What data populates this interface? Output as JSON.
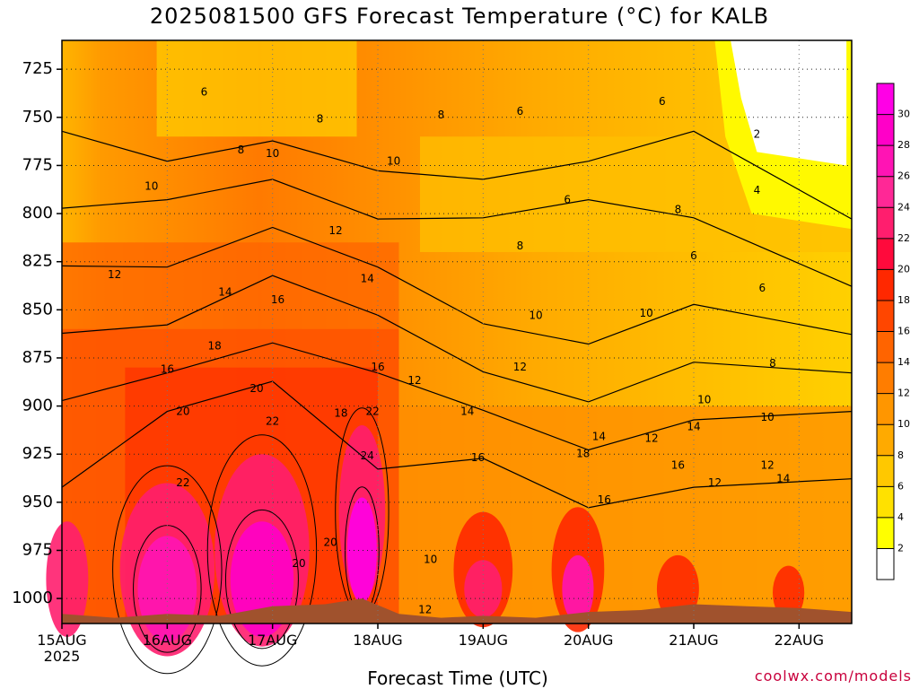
{
  "title": "2025081500 GFS Forecast Temperature (°C) for KALB",
  "credit": "coolwx.com/models",
  "chart_data": {
    "type": "heatmap",
    "title": "2025081500 GFS Forecast Temperature (°C) for KALB",
    "xlabel": "Forecast Time (UTC)",
    "ylabel": "",
    "x_ticks": [
      "15AUG",
      "16AUG",
      "17AUG",
      "18AUG",
      "19AUG",
      "20AUG",
      "21AUG",
      "22AUG"
    ],
    "x_tick_year": "2025",
    "xlim_days": [
      0,
      7.5
    ],
    "y_ticks": [
      725,
      750,
      775,
      800,
      825,
      850,
      875,
      900,
      925,
      950,
      975,
      1000
    ],
    "ylim_hpa": [
      1013,
      710
    ],
    "grid": true,
    "colorbar": {
      "ticks": [
        2,
        4,
        6,
        8,
        10,
        12,
        14,
        16,
        18,
        20,
        22,
        24,
        26,
        28,
        30
      ],
      "colors": [
        "#ffffff",
        "#ffff00",
        "#ffe100",
        "#ffc800",
        "#ffaa00",
        "#ff9600",
        "#ff7d00",
        "#ff6400",
        "#ff4600",
        "#ff2800",
        "#ff0a3c",
        "#ff1e6e",
        "#ff2896",
        "#ff14b4",
        "#ff00c8",
        "#ff00e6"
      ]
    },
    "contour_labels": [
      {
        "value": 6,
        "day": 1.35,
        "p": 737
      },
      {
        "value": 8,
        "day": 1.7,
        "p": 767
      },
      {
        "value": 10,
        "day": 0.85,
        "p": 786
      },
      {
        "value": 10,
        "day": 2.0,
        "p": 769
      },
      {
        "value": 8,
        "day": 2.45,
        "p": 751
      },
      {
        "value": 8,
        "day": 3.6,
        "p": 749
      },
      {
        "value": 10,
        "day": 3.15,
        "p": 773
      },
      {
        "value": 12,
        "day": 2.6,
        "p": 809
      },
      {
        "value": 12,
        "day": 0.5,
        "p": 832
      },
      {
        "value": 14,
        "day": 1.55,
        "p": 841
      },
      {
        "value": 16,
        "day": 2.05,
        "p": 845
      },
      {
        "value": 14,
        "day": 2.9,
        "p": 834
      },
      {
        "value": 16,
        "day": 1.0,
        "p": 881
      },
      {
        "value": 16,
        "day": 3.0,
        "p": 880
      },
      {
        "value": 18,
        "day": 1.45,
        "p": 869
      },
      {
        "value": 18,
        "day": 2.65,
        "p": 904
      },
      {
        "value": 20,
        "day": 1.85,
        "p": 891
      },
      {
        "value": 20,
        "day": 1.15,
        "p": 903
      },
      {
        "value": 22,
        "day": 2.0,
        "p": 908
      },
      {
        "value": 22,
        "day": 2.95,
        "p": 903
      },
      {
        "value": 24,
        "day": 2.9,
        "p": 926
      },
      {
        "value": 22,
        "day": 1.15,
        "p": 940
      },
      {
        "value": 20,
        "day": 2.55,
        "p": 971
      },
      {
        "value": 20,
        "day": 2.25,
        "p": 982
      },
      {
        "value": 12,
        "day": 3.35,
        "p": 887
      },
      {
        "value": 6,
        "day": 4.35,
        "p": 747
      },
      {
        "value": 6,
        "day": 4.8,
        "p": 793
      },
      {
        "value": 8,
        "day": 4.35,
        "p": 817
      },
      {
        "value": 10,
        "day": 4.5,
        "p": 853
      },
      {
        "value": 12,
        "day": 4.35,
        "p": 880
      },
      {
        "value": 14,
        "day": 3.85,
        "p": 903
      },
      {
        "value": 16,
        "day": 3.95,
        "p": 927
      },
      {
        "value": 10,
        "day": 3.5,
        "p": 980
      },
      {
        "value": 12,
        "day": 3.45,
        "p": 1006
      },
      {
        "value": 6,
        "day": 5.7,
        "p": 742
      },
      {
        "value": 8,
        "day": 5.85,
        "p": 798
      },
      {
        "value": 6,
        "day": 6.0,
        "p": 822
      },
      {
        "value": 10,
        "day": 5.55,
        "p": 852
      },
      {
        "value": 14,
        "day": 5.1,
        "p": 916
      },
      {
        "value": 18,
        "day": 4.95,
        "p": 925
      },
      {
        "value": 16,
        "day": 5.15,
        "p": 949
      },
      {
        "value": 12,
        "day": 5.6,
        "p": 917
      },
      {
        "value": 14,
        "day": 6.0,
        "p": 911
      },
      {
        "value": 16,
        "day": 5.85,
        "p": 931
      },
      {
        "value": 12,
        "day": 6.2,
        "p": 940
      },
      {
        "value": 10,
        "day": 6.1,
        "p": 897
      },
      {
        "value": 2,
        "day": 6.6,
        "p": 759
      },
      {
        "value": 4,
        "day": 6.6,
        "p": 788
      },
      {
        "value": 6,
        "day": 6.65,
        "p": 839
      },
      {
        "value": 8,
        "day": 6.75,
        "p": 878
      },
      {
        "value": 10,
        "day": 6.7,
        "p": 906
      },
      {
        "value": 12,
        "day": 6.7,
        "p": 931
      },
      {
        "value": 14,
        "day": 6.85,
        "p": 938
      }
    ]
  }
}
